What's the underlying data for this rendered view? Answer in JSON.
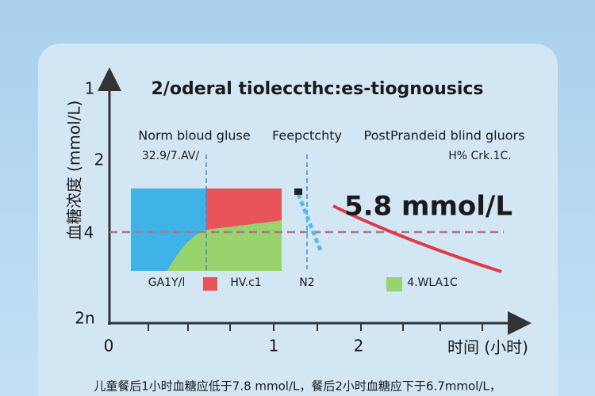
{
  "header": {
    "title": "2/oderal tioleccthc:es-tiognousics"
  },
  "y_axis": {
    "label": "血糖浓度 (mmol/L)",
    "ticks": [
      "1",
      "2",
      "4",
      "2n"
    ]
  },
  "x_axis": {
    "label": "时间 (小时)",
    "ticks": [
      "0",
      "1",
      "2"
    ]
  },
  "sections": [
    {
      "title": "Norm bloud gluse",
      "subtitle": "32.9/7.AV/"
    },
    {
      "title": "Feepctchty"
    },
    {
      "title": "PostPrandeid blind gluors",
      "subtitle": "H% Crk.1C."
    }
  ],
  "callout": "5.8 mmol/L",
  "legend": [
    "GA1Y/l",
    "HV.c1",
    "N2",
    "4.WLA1C"
  ],
  "footer": "儿童餐后1小时血糖应低于7.8 mmol/L，餐后2小时血糖应下于6.7mmol/L，"
}
